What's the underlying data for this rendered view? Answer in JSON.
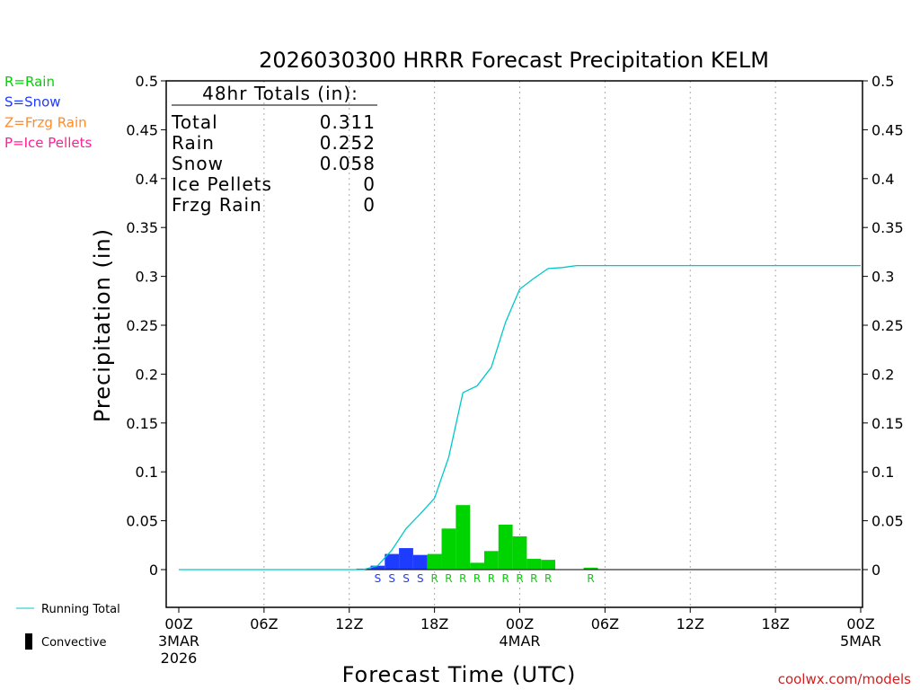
{
  "chart_data": {
    "type": "bar",
    "title": "2026030300 HRRR Forecast Precipitation KELM",
    "xlabel": "Forecast Time (UTC)",
    "ylabel": "Precipitation (in)",
    "ylim": [
      -0.04,
      0.5
    ],
    "xlim": [
      0,
      48
    ],
    "y_ticks": [
      "0.5",
      "0.45",
      "0.4",
      "0.35",
      "0.3",
      "0.25",
      "0.2",
      "0.15",
      "0.1",
      "0.05",
      "0"
    ],
    "y_tick_values": [
      0.5,
      0.45,
      0.4,
      0.35,
      0.3,
      0.25,
      0.2,
      0.15,
      0.1,
      0.05,
      0
    ],
    "x_ticks": [
      {
        "hour": 0,
        "label": "00Z",
        "sub": "3MAR",
        "sub2": "2026"
      },
      {
        "hour": 6,
        "label": "06Z",
        "sub": "",
        "sub2": ""
      },
      {
        "hour": 12,
        "label": "12Z",
        "sub": "",
        "sub2": ""
      },
      {
        "hour": 18,
        "label": "18Z",
        "sub": "",
        "sub2": ""
      },
      {
        "hour": 24,
        "label": "00Z",
        "sub": "4MAR",
        "sub2": ""
      },
      {
        "hour": 30,
        "label": "06Z",
        "sub": "",
        "sub2": ""
      },
      {
        "hour": 36,
        "label": "12Z",
        "sub": "",
        "sub2": ""
      },
      {
        "hour": 42,
        "label": "18Z",
        "sub": "",
        "sub2": ""
      },
      {
        "hour": 48,
        "label": "00Z",
        "sub": "5MAR",
        "sub2": ""
      }
    ],
    "grid": "vertical-dotted",
    "bars": [
      {
        "hour": 13,
        "value": 0.001,
        "ptype": "S",
        "show_label": false
      },
      {
        "hour": 14,
        "value": 0.004,
        "ptype": "S",
        "show_label": true
      },
      {
        "hour": 15,
        "value": 0.016,
        "ptype": "S",
        "show_label": true
      },
      {
        "hour": 16,
        "value": 0.022,
        "ptype": "S",
        "show_label": true
      },
      {
        "hour": 17,
        "value": 0.015,
        "ptype": "S",
        "show_label": true
      },
      {
        "hour": 18,
        "value": 0.016,
        "ptype": "R",
        "show_label": true
      },
      {
        "hour": 19,
        "value": 0.042,
        "ptype": "R",
        "show_label": true
      },
      {
        "hour": 20,
        "value": 0.066,
        "ptype": "R",
        "show_label": true
      },
      {
        "hour": 21,
        "value": 0.007,
        "ptype": "R",
        "show_label": true
      },
      {
        "hour": 22,
        "value": 0.019,
        "ptype": "R",
        "show_label": true
      },
      {
        "hour": 23,
        "value": 0.046,
        "ptype": "R",
        "show_label": true
      },
      {
        "hour": 24,
        "value": 0.034,
        "ptype": "R",
        "show_label": true
      },
      {
        "hour": 25,
        "value": 0.011,
        "ptype": "R",
        "show_label": true
      },
      {
        "hour": 26,
        "value": 0.01,
        "ptype": "R",
        "show_label": true
      },
      {
        "hour": 29,
        "value": 0.002,
        "ptype": "R",
        "show_label": true
      }
    ],
    "running_total": {
      "name": "Running Total",
      "x": [
        0,
        13,
        14,
        15,
        16,
        17,
        18,
        19,
        20,
        21,
        22,
        23,
        24,
        25,
        26,
        27,
        28,
        29,
        48
      ],
      "y": [
        0,
        0,
        0.004,
        0.02,
        0.042,
        0.057,
        0.073,
        0.115,
        0.181,
        0.188,
        0.207,
        0.253,
        0.287,
        0.298,
        0.308,
        0.309,
        0.311,
        0.311,
        0.311
      ]
    },
    "colors": {
      "rain": "#00d400",
      "snow": "#1e3cff",
      "frzg_rain": "#ff8c28",
      "ice_pellets": "#ff1e96",
      "running_total": "#00c8c8",
      "convective": "#000000"
    }
  },
  "ptype_legend": [
    {
      "code": "R",
      "text": "R=Rain",
      "color": "#00d400"
    },
    {
      "code": "S",
      "text": "S=Snow",
      "color": "#1e3cff"
    },
    {
      "code": "Z",
      "text": "Z=Frzg Rain",
      "color": "#ff8c28"
    },
    {
      "code": "P",
      "text": "P=Ice Pellets",
      "color": "#ff1e96"
    }
  ],
  "totals": {
    "heading": "48hr Totals (in):",
    "rows": [
      {
        "label": "Total",
        "value": "0.311"
      },
      {
        "label": "Rain",
        "value": "0.252"
      },
      {
        "label": "Snow",
        "value": "0.058"
      },
      {
        "label": "Ice Pellets",
        "value": "0"
      },
      {
        "label": "Frzg Rain",
        "value": "0"
      }
    ]
  },
  "legend": {
    "running_total": "Running Total",
    "convective": "Convective"
  },
  "credit": "coolwx.com/models"
}
